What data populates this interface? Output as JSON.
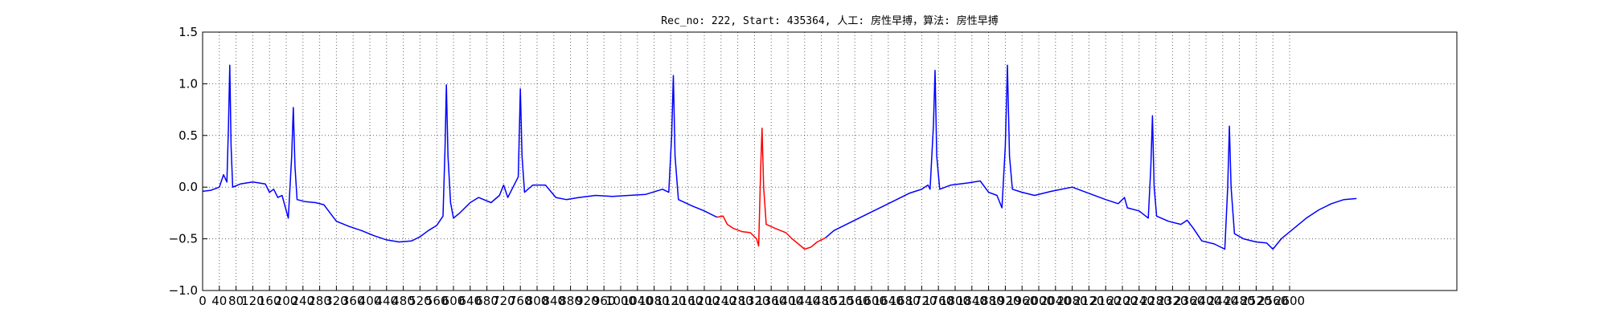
{
  "chart_data": {
    "type": "line",
    "title": "Rec_no: 222, Start: 435364, 人工: 房性早搏，算法: 房性早搏",
    "xlabel": "",
    "ylabel": "",
    "xlim": [
      0,
      3000
    ],
    "ylim": [
      -1.0,
      1.5
    ],
    "grid": true,
    "x_ticks": [
      0,
      40,
      80,
      120,
      160,
      200,
      240,
      280,
      320,
      360,
      400,
      440,
      480,
      520,
      560,
      600,
      640,
      680,
      720,
      760,
      800,
      840,
      880,
      920,
      960,
      1000,
      1040,
      1080,
      1120,
      1160,
      1200,
      1240,
      1280,
      1320,
      1360,
      1400,
      1440,
      1480,
      1520,
      1560,
      1600,
      1640,
      1680,
      1720,
      1760,
      1800,
      1840,
      1880,
      1920,
      1960,
      2000,
      2040,
      2080,
      2120,
      2160,
      2200,
      2240,
      2280,
      2320,
      2360,
      2400,
      2440,
      2480,
      2520,
      2560,
      2600
    ],
    "y_ticks": [
      -1.0,
      -0.5,
      0.0,
      0.5,
      1.0,
      1.5
    ],
    "y_tick_labels": [
      "−1.0",
      "−0.5",
      "0.0",
      "0.5",
      "1.0",
      "1.5"
    ],
    "series": [
      {
        "color": "#0000ff",
        "segment": "pre",
        "points": [
          [
            0,
            -0.04
          ],
          [
            20,
            -0.03
          ],
          [
            40,
            0.0
          ],
          [
            50,
            0.12
          ],
          [
            58,
            0.05
          ],
          [
            62,
            0.6
          ],
          [
            65,
            1.18
          ],
          [
            68,
            0.4
          ],
          [
            72,
            0.0
          ],
          [
            90,
            0.03
          ],
          [
            120,
            0.05
          ],
          [
            150,
            0.03
          ],
          [
            160,
            -0.05
          ],
          [
            170,
            -0.02
          ],
          [
            180,
            -0.1
          ],
          [
            190,
            -0.08
          ],
          [
            205,
            -0.3
          ],
          [
            213,
            0.3
          ],
          [
            217,
            0.77
          ],
          [
            221,
            0.2
          ],
          [
            226,
            -0.12
          ],
          [
            245,
            -0.14
          ],
          [
            270,
            -0.15
          ],
          [
            290,
            -0.17
          ],
          [
            305,
            -0.25
          ],
          [
            320,
            -0.33
          ],
          [
            350,
            -0.38
          ],
          [
            380,
            -0.42
          ],
          [
            410,
            -0.47
          ],
          [
            440,
            -0.51
          ],
          [
            470,
            -0.53
          ],
          [
            500,
            -0.52
          ],
          [
            520,
            -0.48
          ],
          [
            540,
            -0.42
          ],
          [
            560,
            -0.37
          ],
          [
            575,
            -0.28
          ],
          [
            580,
            0.4
          ],
          [
            583,
            0.99
          ],
          [
            587,
            0.3
          ],
          [
            593,
            -0.15
          ],
          [
            600,
            -0.3
          ],
          [
            615,
            -0.25
          ],
          [
            640,
            -0.15
          ],
          [
            660,
            -0.1
          ],
          [
            690,
            -0.15
          ],
          [
            710,
            -0.08
          ],
          [
            720,
            0.02
          ],
          [
            730,
            -0.1
          ],
          [
            755,
            0.1
          ],
          [
            760,
            0.95
          ],
          [
            764,
            0.3
          ],
          [
            770,
            -0.05
          ],
          [
            790,
            0.02
          ],
          [
            820,
            0.02
          ],
          [
            845,
            -0.1
          ],
          [
            870,
            -0.12
          ],
          [
            900,
            -0.1
          ],
          [
            940,
            -0.08
          ],
          [
            980,
            -0.09
          ],
          [
            1020,
            -0.08
          ],
          [
            1060,
            -0.07
          ],
          [
            1100,
            -0.02
          ],
          [
            1115,
            -0.05
          ],
          [
            1122,
            0.5
          ],
          [
            1126,
            1.08
          ],
          [
            1130,
            0.3
          ],
          [
            1138,
            -0.12
          ],
          [
            1170,
            -0.18
          ],
          [
            1200,
            -0.23
          ],
          [
            1230,
            -0.29
          ]
        ]
      },
      {
        "color": "#ff0000",
        "segment": "marked",
        "points": [
          [
            1230,
            -0.29
          ],
          [
            1245,
            -0.28
          ],
          [
            1255,
            -0.36
          ],
          [
            1270,
            -0.4
          ],
          [
            1290,
            -0.43
          ],
          [
            1310,
            -0.44
          ],
          [
            1325,
            -0.5
          ],
          [
            1330,
            -0.57
          ],
          [
            1335,
            0.2
          ],
          [
            1338,
            0.57
          ],
          [
            1342,
            0.0
          ],
          [
            1348,
            -0.36
          ],
          [
            1370,
            -0.4
          ],
          [
            1395,
            -0.44
          ],
          [
            1410,
            -0.5
          ],
          [
            1425,
            -0.55
          ],
          [
            1440,
            -0.6
          ],
          [
            1455,
            -0.58
          ],
          [
            1470,
            -0.53
          ],
          [
            1490,
            -0.49
          ]
        ]
      },
      {
        "color": "#0000ff",
        "segment": "post",
        "points": [
          [
            1490,
            -0.49
          ],
          [
            1510,
            -0.42
          ],
          [
            1540,
            -0.36
          ],
          [
            1570,
            -0.3
          ],
          [
            1600,
            -0.24
          ],
          [
            1630,
            -0.18
          ],
          [
            1660,
            -0.12
          ],
          [
            1690,
            -0.06
          ],
          [
            1720,
            -0.02
          ],
          [
            1735,
            0.02
          ],
          [
            1740,
            -0.02
          ],
          [
            1748,
            0.6
          ],
          [
            1752,
            1.13
          ],
          [
            1756,
            0.3
          ],
          [
            1763,
            -0.02
          ],
          [
            1790,
            0.02
          ],
          [
            1830,
            0.04
          ],
          [
            1860,
            0.06
          ],
          [
            1880,
            -0.05
          ],
          [
            1900,
            -0.08
          ],
          [
            1912,
            -0.2
          ],
          [
            1920,
            0.4
          ],
          [
            1925,
            1.18
          ],
          [
            1930,
            0.3
          ],
          [
            1937,
            -0.02
          ],
          [
            1960,
            -0.05
          ],
          [
            1990,
            -0.08
          ],
          [
            2030,
            -0.04
          ],
          [
            2080,
            0.0
          ],
          [
            2120,
            -0.06
          ],
          [
            2160,
            -0.12
          ],
          [
            2190,
            -0.16
          ],
          [
            2205,
            -0.1
          ],
          [
            2212,
            -0.2
          ],
          [
            2240,
            -0.23
          ],
          [
            2262,
            -0.3
          ],
          [
            2268,
            0.2
          ],
          [
            2272,
            0.69
          ],
          [
            2276,
            0.0
          ],
          [
            2282,
            -0.28
          ],
          [
            2310,
            -0.33
          ],
          [
            2340,
            -0.36
          ],
          [
            2355,
            -0.32
          ],
          [
            2370,
            -0.4
          ],
          [
            2390,
            -0.52
          ],
          [
            2420,
            -0.55
          ],
          [
            2445,
            -0.6
          ],
          [
            2452,
            0.0
          ],
          [
            2456,
            0.59
          ],
          [
            2460,
            0.0
          ],
          [
            2468,
            -0.45
          ],
          [
            2490,
            -0.5
          ],
          [
            2520,
            -0.53
          ],
          [
            2545,
            -0.54
          ],
          [
            2560,
            -0.6
          ],
          [
            2580,
            -0.5
          ],
          [
            2610,
            -0.4
          ],
          [
            2640,
            -0.3
          ],
          [
            2670,
            -0.22
          ],
          [
            2700,
            -0.16
          ],
          [
            2730,
            -0.12
          ],
          [
            2760,
            -0.11
          ]
        ]
      }
    ]
  }
}
